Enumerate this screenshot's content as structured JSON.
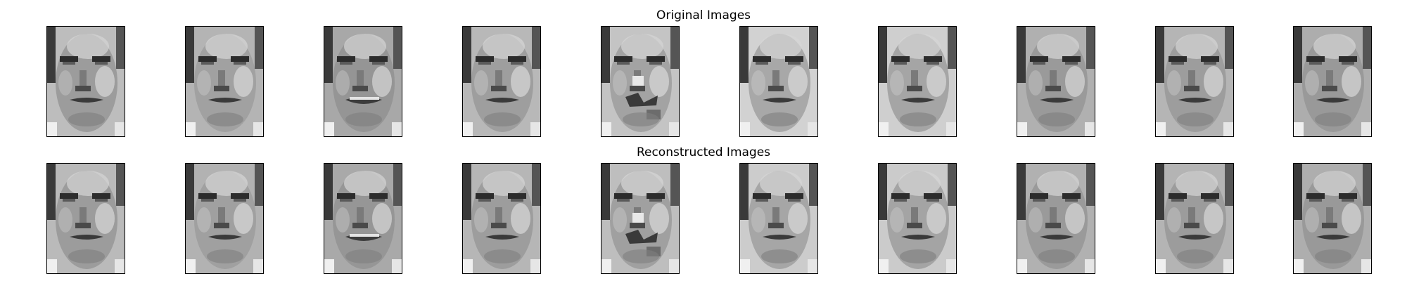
{
  "figure": {
    "rows": [
      {
        "id": "original",
        "title": "Original Images",
        "faces": [
          {
            "variant": "neutral",
            "bg": "#bdbdbd",
            "skin": "#9c9c9c"
          },
          {
            "variant": "neutral",
            "bg": "#b4b4b4",
            "skin": "#a1a1a1"
          },
          {
            "variant": "smile",
            "bg": "#a8a8a8",
            "skin": "#959595"
          },
          {
            "variant": "neutral",
            "bg": "#b8b8b8",
            "skin": "#9e9e9e"
          },
          {
            "variant": "distorted",
            "bg": "#c4c4c4",
            "skin": "#a3a3a3"
          },
          {
            "variant": "neutral",
            "bg": "#d2d2d2",
            "skin": "#a8a8a8"
          },
          {
            "variant": "neutral",
            "bg": "#cfcfcf",
            "skin": "#a5a5a5"
          },
          {
            "variant": "neutral",
            "bg": "#b0b0b0",
            "skin": "#9a9a9a"
          },
          {
            "variant": "neutral",
            "bg": "#b5b5b5",
            "skin": "#9d9d9d"
          },
          {
            "variant": "neutral",
            "bg": "#adadad",
            "skin": "#999999"
          }
        ]
      },
      {
        "id": "reconstructed",
        "title": "Reconstructed Images",
        "faces": [
          {
            "variant": "neutral",
            "bg": "#bababa",
            "skin": "#9c9c9c"
          },
          {
            "variant": "neutral",
            "bg": "#b2b2b2",
            "skin": "#a0a0a0"
          },
          {
            "variant": "smile",
            "bg": "#a9a9a9",
            "skin": "#969696"
          },
          {
            "variant": "neutral",
            "bg": "#b6b6b6",
            "skin": "#9d9d9d"
          },
          {
            "variant": "distorted",
            "bg": "#bebebe",
            "skin": "#a0a0a0"
          },
          {
            "variant": "neutral",
            "bg": "#cccccc",
            "skin": "#a6a6a6"
          },
          {
            "variant": "neutral",
            "bg": "#cbcbcb",
            "skin": "#a4a4a4"
          },
          {
            "variant": "neutral",
            "bg": "#b1b1b1",
            "skin": "#9a9a9a"
          },
          {
            "variant": "neutral",
            "bg": "#b4b4b4",
            "skin": "#9c9c9c"
          },
          {
            "variant": "neutral",
            "bg": "#aeaeae",
            "skin": "#999999"
          }
        ]
      }
    ]
  }
}
